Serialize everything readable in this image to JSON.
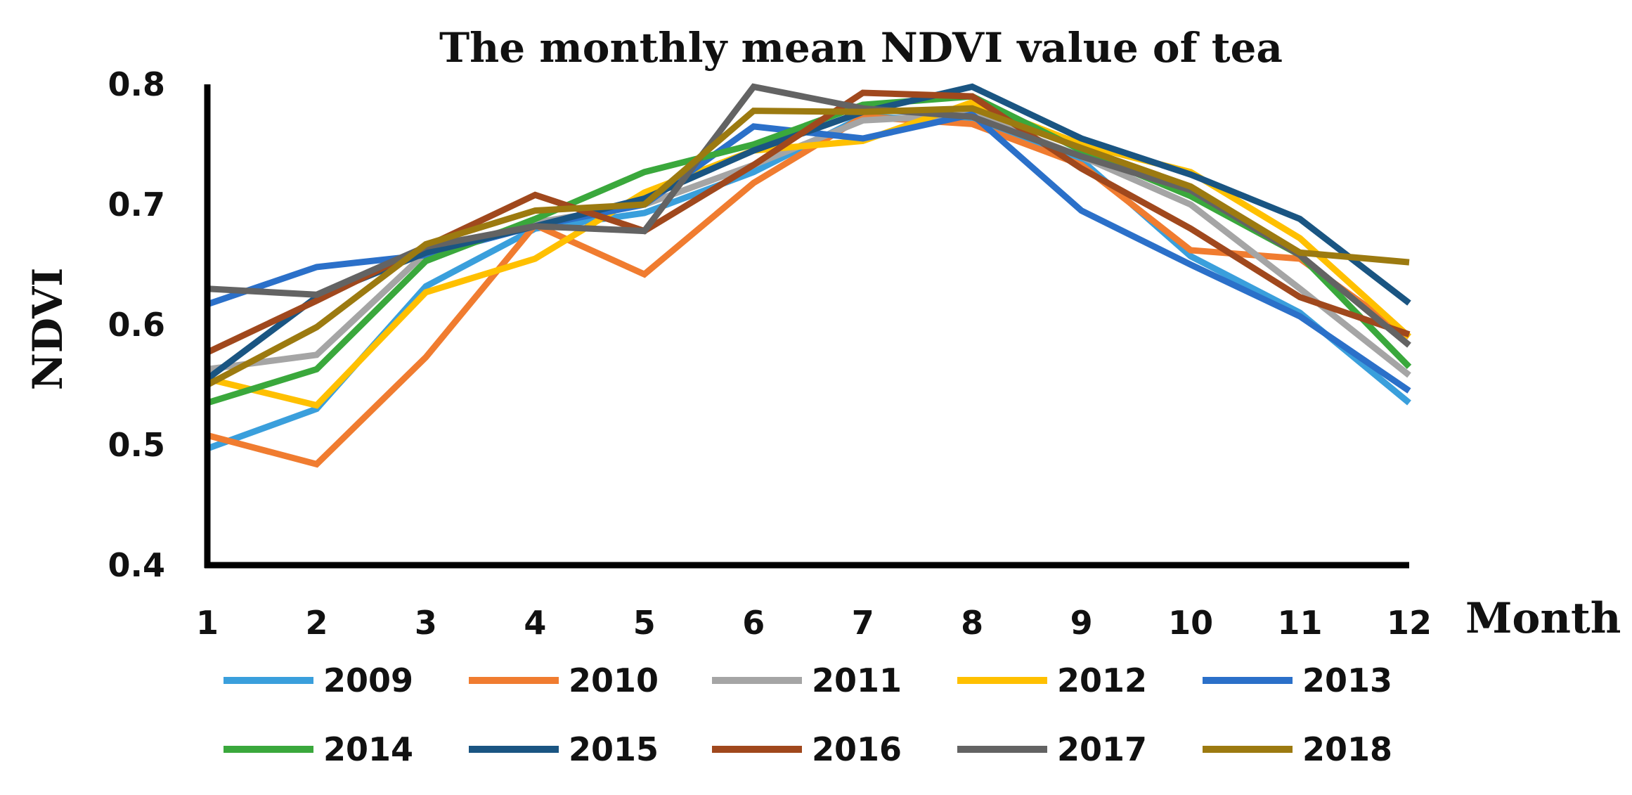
{
  "chart_data": {
    "type": "line",
    "title": "The monthly mean NDVI value of tea",
    "xlabel": "Month",
    "ylabel": "NDVI",
    "x": [
      1,
      2,
      3,
      4,
      5,
      6,
      7,
      8,
      9,
      10,
      11,
      12
    ],
    "x_tick_labels": [
      "1",
      "2",
      "3",
      "4",
      "5",
      "6",
      "7",
      "8",
      "9",
      "10",
      "11",
      "12"
    ],
    "y_tick_labels": [
      "0.4",
      "0.5",
      "0.6",
      "0.7",
      "0.8"
    ],
    "y_ticks": [
      0.4,
      0.5,
      0.6,
      0.7,
      0.8
    ],
    "ylim": [
      0.4,
      0.8
    ],
    "grid": false,
    "legend_position": "bottom",
    "series": [
      {
        "name": "2009",
        "color": "#3a9fdc",
        "values": [
          0.497,
          0.53,
          0.632,
          0.68,
          0.693,
          0.727,
          0.773,
          0.77,
          0.737,
          0.657,
          0.61,
          0.535
        ]
      },
      {
        "name": "2010",
        "color": "#f07c30",
        "values": [
          0.508,
          0.484,
          0.573,
          0.683,
          0.642,
          0.718,
          0.773,
          0.767,
          0.733,
          0.662,
          0.655,
          0.59
        ]
      },
      {
        "name": "2011",
        "color": "#a5a5a5",
        "values": [
          0.563,
          0.575,
          0.66,
          0.685,
          0.7,
          0.733,
          0.77,
          0.775,
          0.74,
          0.7,
          0.63,
          0.558
        ]
      },
      {
        "name": "2012",
        "color": "#ffc000",
        "values": [
          0.555,
          0.533,
          0.627,
          0.655,
          0.71,
          0.745,
          0.753,
          0.785,
          0.75,
          0.727,
          0.672,
          0.59
        ]
      },
      {
        "name": "2013",
        "color": "#2b70c9",
        "values": [
          0.617,
          0.648,
          0.658,
          0.682,
          0.7,
          0.765,
          0.755,
          0.775,
          0.695,
          0.65,
          0.607,
          0.545
        ]
      },
      {
        "name": "2014",
        "color": "#3aa83c",
        "values": [
          0.535,
          0.563,
          0.653,
          0.688,
          0.727,
          0.75,
          0.783,
          0.79,
          0.745,
          0.707,
          0.658,
          0.565
        ]
      },
      {
        "name": "2015",
        "color": "#1a5582",
        "values": [
          0.555,
          0.623,
          0.66,
          0.682,
          0.705,
          0.745,
          0.777,
          0.798,
          0.755,
          0.725,
          0.688,
          0.618
        ]
      },
      {
        "name": "2016",
        "color": "#a0481d",
        "values": [
          0.577,
          0.62,
          0.665,
          0.708,
          0.678,
          0.733,
          0.793,
          0.79,
          0.73,
          0.68,
          0.623,
          0.592
        ]
      },
      {
        "name": "2017",
        "color": "#636363",
        "values": [
          0.63,
          0.625,
          0.665,
          0.682,
          0.678,
          0.798,
          0.78,
          0.773,
          0.74,
          0.712,
          0.658,
          0.583
        ]
      },
      {
        "name": "2018",
        "color": "#9c7a10",
        "values": [
          0.55,
          0.598,
          0.667,
          0.695,
          0.7,
          0.778,
          0.777,
          0.78,
          0.747,
          0.715,
          0.66,
          0.652
        ]
      }
    ]
  }
}
